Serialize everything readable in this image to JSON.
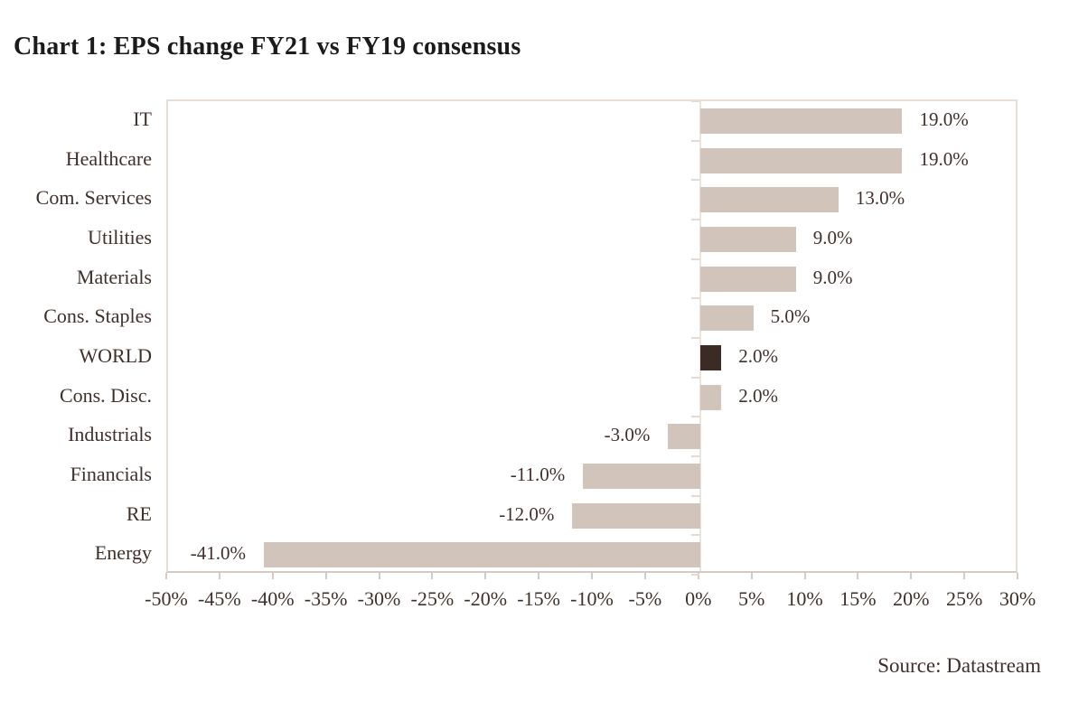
{
  "header": {
    "title": "Chart 1: EPS change FY21 vs FY19 consensus"
  },
  "footer": {
    "source": "Source: Datastream"
  },
  "chart_data": {
    "type": "bar",
    "orientation": "horizontal",
    "title": "Chart 1: EPS change FY21 vs FY19 consensus",
    "categories": [
      "IT",
      "Healthcare",
      "Com. Services",
      "Utilities",
      "Materials",
      "Cons. Staples",
      "WORLD",
      "Cons. Disc.",
      "Industrials",
      "Financials",
      "RE",
      "Energy"
    ],
    "values": [
      19,
      19,
      13,
      9,
      9,
      5,
      2,
      2,
      -3,
      -11,
      -12,
      -41
    ],
    "value_labels": [
      "19.0%",
      "19.0%",
      "13.0%",
      "9.0%",
      "9.0%",
      "5.0%",
      "2.0%",
      "2.0%",
      "-3.0%",
      "-11.0%",
      "-12.0%",
      "-41.0%"
    ],
    "highlight_category": "WORLD",
    "xlabel": "",
    "ylabel": "",
    "xlim": [
      -50,
      30
    ],
    "x_tick_step": 5,
    "x_tick_labels": [
      "-50%",
      "-45%",
      "-40%",
      "-35%",
      "-30%",
      "-25%",
      "-20%",
      "-15%",
      "-10%",
      "-5%",
      "0%",
      "5%",
      "10%",
      "15%",
      "20%",
      "25%",
      "30%"
    ],
    "grid": false,
    "legend": "none",
    "source": "Source: Datastream",
    "colors": {
      "bar": "#d0c4bb",
      "highlight_bar": "#3a2b25",
      "text": "#40302a",
      "title": "#1b1b1b",
      "plot_border": "#e8ded8",
      "axis_line": "#d6c9c2",
      "zero_line": "#ece3dd"
    }
  }
}
